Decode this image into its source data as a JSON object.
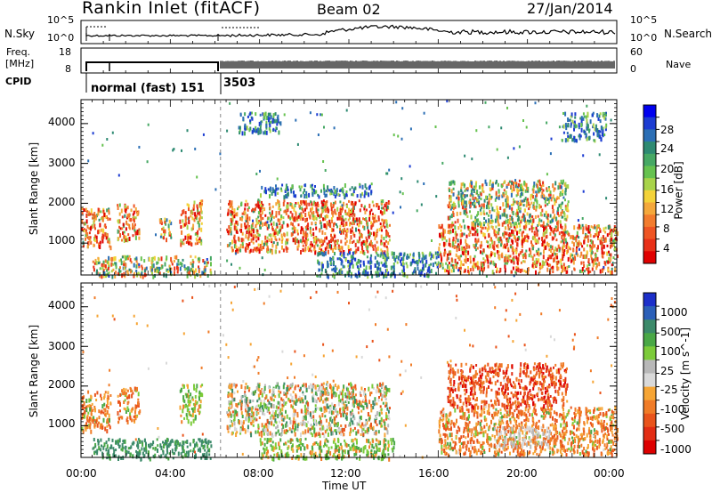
{
  "header": {
    "station": "Rankin Inlet (fitACF)",
    "beam": "Beam 02",
    "date": "27/Jan/2014"
  },
  "noise_panel": {
    "left_label": "N.Sky",
    "right_label": "N.Search",
    "left_ticks": [
      "10^5",
      "10^0"
    ],
    "right_ticks": [
      "10^5",
      "10^0"
    ],
    "line_style_right": "dotted"
  },
  "freq_panel": {
    "left_label_1": "Freq.",
    "left_label_2": "[MHz]",
    "right_label": "Nave",
    "left_ticks": [
      "18",
      "8"
    ],
    "right_ticks": [
      "60",
      "0"
    ]
  },
  "cpid_panel": {
    "label": "CPID",
    "segments": [
      {
        "start_hour": 0.0,
        "end_hour": 6.25,
        "name": "normal (fast) 151"
      },
      {
        "start_hour": 6.25,
        "end_hour": 24.0,
        "name": "3503"
      }
    ]
  },
  "chart_data": [
    {
      "type": "heatmap",
      "name": "power",
      "ylabel": "Slant Range [km]",
      "y_ticks": [
        "1000",
        "2000",
        "3000",
        "4000"
      ],
      "ylim": [
        200,
        4600
      ],
      "xlim_hours": [
        0,
        24
      ],
      "colorbar": {
        "label": "Power [dB]",
        "tick_labels": [
          "28",
          "24",
          "20",
          "16",
          "12",
          "8",
          "4"
        ],
        "colors": [
          "#0000ee",
          "#1c3cd2",
          "#2c6fb5",
          "#2e8a72",
          "#46a864",
          "#66c24f",
          "#a8d34a",
          "#f3d239",
          "#f4a83b",
          "#f27c2e",
          "#ee5524",
          "#e83018",
          "#e00000"
        ]
      },
      "regions": [
        {
          "t0": 0.0,
          "t1": 1.3,
          "r0": 900,
          "r1": 1900,
          "level": "strong"
        },
        {
          "t0": 1.6,
          "t1": 2.6,
          "r0": 1100,
          "r1": 2000,
          "level": "strong"
        },
        {
          "t0": 3.5,
          "t1": 4.0,
          "r0": 1100,
          "r1": 1700,
          "level": "medium"
        },
        {
          "t0": 4.4,
          "t1": 5.4,
          "r0": 1000,
          "r1": 2100,
          "level": "strong"
        },
        {
          "t0": 0.5,
          "t1": 5.8,
          "r0": 200,
          "r1": 700,
          "level": "medium"
        },
        {
          "t0": 6.5,
          "t1": 13.8,
          "r0": 800,
          "r1": 2100,
          "level": "strong"
        },
        {
          "t0": 8.0,
          "t1": 13.0,
          "r0": 2200,
          "r1": 2500,
          "level": "weak"
        },
        {
          "t0": 10.5,
          "t1": 16.0,
          "r0": 200,
          "r1": 800,
          "level": "weak"
        },
        {
          "t0": 16.0,
          "t1": 24.0,
          "r0": 300,
          "r1": 1500,
          "level": "strong"
        },
        {
          "t0": 16.4,
          "t1": 21.8,
          "r0": 1500,
          "r1": 2600,
          "level": "medium"
        },
        {
          "t0": 7.0,
          "t1": 9.0,
          "r0": 3800,
          "r1": 4300,
          "level": "weak"
        },
        {
          "t0": 21.5,
          "t1": 23.5,
          "r0": 3600,
          "r1": 4300,
          "level": "weak"
        }
      ]
    },
    {
      "type": "heatmap",
      "name": "velocity",
      "ylabel": "Slant Range [km]",
      "xlabel": "Time UT",
      "x_ticks": [
        "00:00",
        "04:00",
        "08:00",
        "12:00",
        "16:00",
        "20:00",
        "00:00"
      ],
      "y_ticks": [
        "1000",
        "2000",
        "3000",
        "4000"
      ],
      "ylim": [
        200,
        4600
      ],
      "xlim_hours": [
        0,
        24
      ],
      "colorbar": {
        "label": "Velocity [m s^-1]",
        "tick_labels": [
          "1000",
          "500",
          "100",
          "25",
          "-25",
          "-100",
          "-500",
          "-1000"
        ],
        "colors": [
          "#1c2fc9",
          "#2b5fb8",
          "#3c8a6a",
          "#4aa846",
          "#7ccb3a",
          "#b8b8b8",
          "#d9d9d9",
          "#f6a535",
          "#f07c28",
          "#e9541c",
          "#e22d14",
          "#dd0000"
        ]
      },
      "regions": [
        {
          "t0": 0.0,
          "t1": 1.3,
          "r0": 900,
          "r1": 1900,
          "level": "orange"
        },
        {
          "t0": 1.6,
          "t1": 2.6,
          "r0": 1100,
          "r1": 2000,
          "level": "orange"
        },
        {
          "t0": 4.4,
          "t1": 5.4,
          "r0": 1100,
          "r1": 2100,
          "level": "green"
        },
        {
          "t0": 0.5,
          "t1": 5.8,
          "r0": 200,
          "r1": 700,
          "level": "darkgreen"
        },
        {
          "t0": 6.5,
          "t1": 13.8,
          "r0": 800,
          "r1": 2100,
          "level": "mixed"
        },
        {
          "t0": 8.0,
          "t1": 14.0,
          "r0": 200,
          "r1": 700,
          "level": "green"
        },
        {
          "t0": 16.0,
          "t1": 24.0,
          "r0": 300,
          "r1": 1500,
          "level": "orange"
        },
        {
          "t0": 16.4,
          "t1": 21.8,
          "r0": 1500,
          "r1": 2600,
          "level": "red"
        },
        {
          "t0": 18.5,
          "t1": 21.0,
          "r0": 500,
          "r1": 1000,
          "level": "grey"
        }
      ]
    }
  ]
}
